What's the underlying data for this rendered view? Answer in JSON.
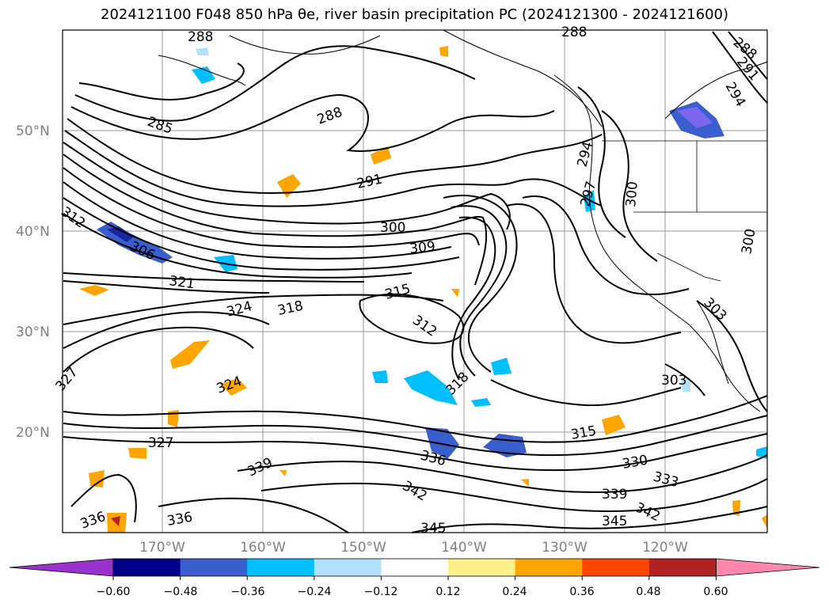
{
  "title": "2024121100 F048 850 hPa θe, river basin precipitation PC (2024121300 - 2024121600)",
  "map": {
    "region": "North Pacific / western North America",
    "lat_labels": [
      "50°N",
      "40°N",
      "30°N",
      "20°N"
    ],
    "lon_labels": [
      "170°W",
      "160°W",
      "150°W",
      "140°W",
      "130°W",
      "120°W"
    ],
    "contour_labels": [
      "288",
      "288",
      "288",
      "285",
      "288",
      "291",
      "294",
      "297",
      "300",
      "300",
      "312",
      "306",
      "309",
      "300",
      "321",
      "324",
      "318",
      "315",
      "312",
      "318",
      "327",
      "324",
      "327",
      "336",
      "339",
      "336",
      "342",
      "345",
      "336",
      "315",
      "330",
      "333",
      "339",
      "342",
      "345",
      "303",
      "303",
      "294",
      "291"
    ]
  },
  "colorbar": {
    "ticks": [
      "−0.60",
      "−0.48",
      "−0.36",
      "−0.24",
      "−0.12",
      "0.12",
      "0.24",
      "0.36",
      "0.48",
      "0.60"
    ],
    "colors": [
      "#9932cc",
      "#00008b",
      "#3a5fcd",
      "#00bfff",
      "#b0e2ff",
      "#ffffff",
      "#fff08c",
      "#ffa500",
      "#ff4500",
      "#b22222",
      "#ff88aa"
    ],
    "under_color": "#9932cc",
    "over_color": "#ff88aa"
  }
}
